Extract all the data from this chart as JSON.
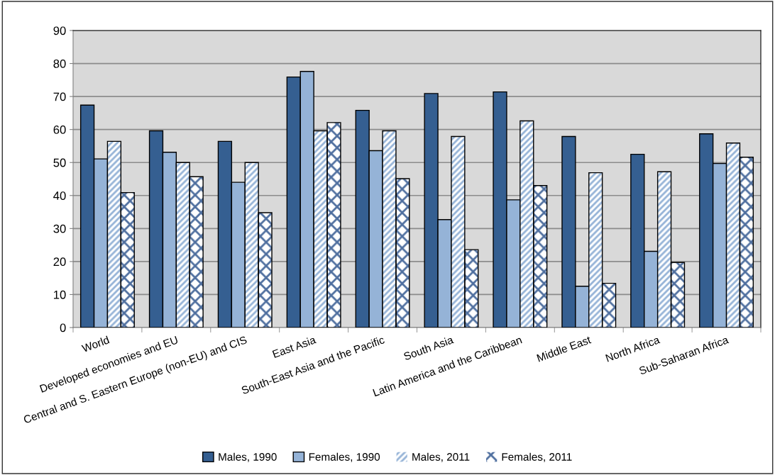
{
  "chart_data": {
    "type": "bar",
    "categories": [
      "World",
      "Developed economies and EU",
      "Central and S. Eastern Europe (non-EU) and CIS",
      "East Asia",
      "South-East Asia and the Pacific",
      "South Asia",
      "Latin America and the Caribbean",
      "Middle East",
      "North Africa",
      "Sub-Saharan Africa"
    ],
    "series": [
      {
        "name": "Males, 1990",
        "color": "#355f91",
        "values": [
          67.4,
          59.6,
          56.4,
          75.9,
          65.8,
          70.9,
          71.4,
          57.9,
          52.5,
          58.7
        ]
      },
      {
        "name": "Females, 1990",
        "color": "#95b3d7",
        "values": [
          51.1,
          53.1,
          44.0,
          77.6,
          53.6,
          32.7,
          38.7,
          12.5,
          23.1,
          49.7
        ]
      },
      {
        "name": "Males, 2011",
        "color": "#95b3d7",
        "values": [
          56.4,
          50.0,
          50.0,
          59.6,
          59.6,
          57.9,
          62.6,
          46.9,
          47.2,
          55.9
        ]
      },
      {
        "name": "Females, 2011",
        "color": "#4f6f9f",
        "values": [
          40.9,
          45.7,
          34.8,
          62.1,
          45.1,
          23.6,
          43.0,
          13.4,
          19.7,
          51.6
        ]
      }
    ],
    "ylim": [
      0,
      90
    ],
    "yticks": [
      0,
      10,
      20,
      30,
      40,
      50,
      60,
      70,
      80,
      90
    ],
    "grid": "y",
    "legend": "bottom"
  }
}
